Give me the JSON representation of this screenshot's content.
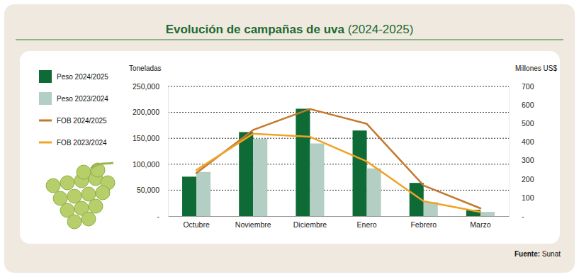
{
  "chart_data": {
    "type": "bar",
    "title": "Evolución de campañas de uva (2024-2025)",
    "source": "Fuente: Sunat",
    "y_label": "Toneladas",
    "y2_label": "Millones US$",
    "categories": [
      "Octubre",
      "Noviembre",
      "Diciembre",
      "Enero",
      "Febrero",
      "Marzo"
    ],
    "series": [
      {
        "name": "Peso 2024/2025",
        "type": "bar",
        "color": "#0e6b35",
        "values": [
          76000,
          162000,
          207000,
          165000,
          64000,
          12000
        ]
      },
      {
        "name": "Peso 2023/2024",
        "type": "bar",
        "color": "#b3cfc3",
        "values": [
          85000,
          149000,
          140000,
          92000,
          27000,
          8000
        ]
      },
      {
        "name": "FOB 2024/2025",
        "type": "line",
        "axis": "y2",
        "color": "#c4782c",
        "values": [
          232,
          465,
          578,
          498,
          165,
          42
        ]
      },
      {
        "name": "FOB 2023/2024",
        "type": "line",
        "axis": "y2",
        "color": "#f0a326",
        "values": [
          248,
          445,
          428,
          295,
          80,
          22
        ]
      }
    ],
    "ylim": [
      0,
      250000
    ],
    "yticks": [
      {
        "value": 0,
        "label": "-"
      },
      {
        "value": 50000,
        "label": "50,000"
      },
      {
        "value": 100000,
        "label": "100,000"
      },
      {
        "value": 150000,
        "label": "150,000"
      },
      {
        "value": 200000,
        "label": "200,000"
      },
      {
        "value": 250000,
        "label": "250,000"
      }
    ],
    "y2lim": [
      0,
      700
    ],
    "y2ticks": [
      {
        "value": 0,
        "label": "-"
      },
      100,
      200,
      300,
      400,
      500,
      600,
      700
    ],
    "grid": true,
    "legend": "left"
  }
}
